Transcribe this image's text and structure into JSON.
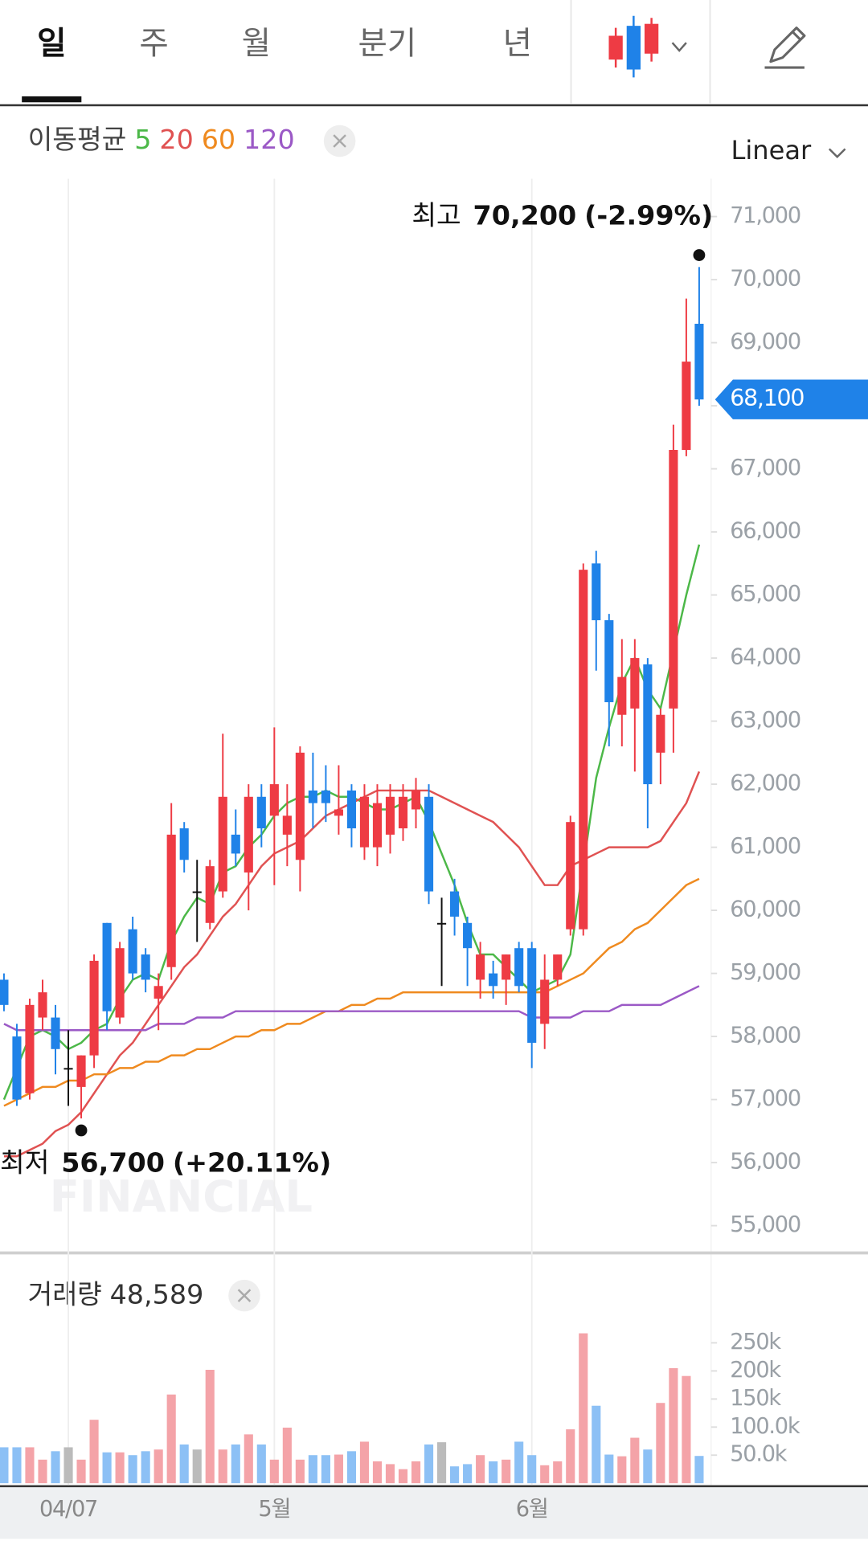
{
  "tabs": [
    "일",
    "주",
    "월",
    "분기",
    "년"
  ],
  "chart_data": {
    "type": "candlestick",
    "categories": [
      null,
      null,
      null,
      null,
      null,
      "04/07",
      null,
      null,
      null,
      null,
      null,
      null,
      null,
      null,
      null,
      null,
      null,
      null,
      null,
      null,
      null,
      "5월",
      null,
      null,
      null,
      null,
      null,
      null,
      null,
      null,
      null,
      null,
      null,
      null,
      null,
      null,
      null,
      null,
      null,
      null,
      null,
      "6월",
      null,
      null,
      null,
      null,
      null,
      null,
      null,
      null,
      null,
      null,
      null,
      null,
      null
    ],
    "open": [
      58900,
      58000,
      57100,
      58300,
      58300,
      57500,
      57200,
      57700,
      59800,
      58300,
      59700,
      59300,
      58600,
      59100,
      61300,
      60300,
      59800,
      60300,
      61200,
      60600,
      61800,
      61500,
      61200,
      60800,
      61900,
      61900,
      61500,
      61900,
      61000,
      61000,
      61200,
      61300,
      61600,
      61800,
      59800,
      60300,
      59800,
      58900,
      59000,
      58900,
      59400,
      59400,
      58200,
      58900,
      59700,
      59700,
      65500,
      64600,
      63100,
      63200,
      63900,
      62500,
      63200,
      67300,
      69300
    ],
    "high": [
      59000,
      58200,
      58600,
      58900,
      58500,
      58100,
      57700,
      59300,
      59800,
      59500,
      59900,
      59400,
      59000,
      61700,
      61400,
      60800,
      60800,
      62800,
      61600,
      62000,
      62000,
      62900,
      62000,
      62600,
      62500,
      62300,
      62300,
      62000,
      62000,
      62000,
      62000,
      62000,
      62100,
      62000,
      60200,
      60500,
      59900,
      59500,
      59200,
      59300,
      59500,
      59500,
      59300,
      59300,
      61500,
      65500,
      65700,
      64700,
      64300,
      64300,
      64000,
      63200,
      67700,
      69700,
      70200
    ],
    "low": [
      58400,
      56900,
      57000,
      58100,
      57400,
      56900,
      56700,
      57500,
      58100,
      58200,
      58900,
      58700,
      58100,
      58900,
      60600,
      59500,
      59700,
      60200,
      60700,
      60000,
      61000,
      60400,
      60700,
      60300,
      61300,
      61400,
      61200,
      61000,
      60800,
      60700,
      60900,
      61100,
      61300,
      60100,
      58800,
      59600,
      58800,
      58600,
      58600,
      58500,
      58700,
      57500,
      57800,
      58800,
      59600,
      59600,
      63800,
      62600,
      62600,
      62200,
      61300,
      62000,
      62500,
      67200,
      68000
    ],
    "close": [
      58500,
      57000,
      58500,
      58700,
      57800,
      57500,
      57700,
      59200,
      58400,
      59400,
      59000,
      58900,
      58800,
      61200,
      60800,
      60300,
      60700,
      61800,
      60900,
      61800,
      61300,
      62000,
      61500,
      62500,
      61700,
      61700,
      61600,
      61300,
      61800,
      61700,
      61800,
      61800,
      61900,
      60300,
      59800,
      59900,
      59400,
      59300,
      58800,
      59300,
      58800,
      57900,
      58900,
      59300,
      61400,
      65400,
      64600,
      63300,
      63700,
      64000,
      62000,
      63100,
      67300,
      68700,
      68100
    ],
    "up_color": "#ee3b44",
    "down_color": "#1f82e8",
    "flat_color": "#111111",
    "ylim": [
      54600,
      71600
    ],
    "yticks": [
      {
        "value": 55000,
        "label": "55,000"
      },
      {
        "value": 56000,
        "label": "56,000"
      },
      {
        "value": 57000,
        "label": "57,000"
      },
      {
        "value": 58000,
        "label": "58,000"
      },
      {
        "value": 59000,
        "label": "59,000"
      },
      {
        "value": 60000,
        "label": "60,000"
      },
      {
        "value": 61000,
        "label": "61,000"
      },
      {
        "value": 62000,
        "label": "62,000"
      },
      {
        "value": 63000,
        "label": "63,000"
      },
      {
        "value": 64000,
        "label": "64,000"
      },
      {
        "value": 65000,
        "label": "65,000"
      },
      {
        "value": 66000,
        "label": "66,000"
      },
      {
        "value": 67000,
        "label": "67,000"
      },
      {
        "value": 68000,
        "label": "68,000"
      },
      {
        "value": 69000,
        "label": "69,000"
      },
      {
        "value": 70000,
        "label": "70,000"
      },
      {
        "value": 71000,
        "label": "71,000"
      }
    ],
    "scale_label": "Linear",
    "last_price": {
      "value": 68100,
      "label": "68,100",
      "color": "#1f82e8"
    },
    "high_marker": {
      "label": "최고",
      "value": 70200,
      "value_label": "70,200",
      "change": "(-2.99%)"
    },
    "low_marker": {
      "label": "최저",
      "value": 56700,
      "value_label": "56,700",
      "change": "(+20.11%)"
    },
    "watermark": "FINANCIAL",
    "moving_average": {
      "label": "이동평균",
      "series": [
        {
          "name": "5",
          "color": "#4cb848",
          "values": [
            57000,
            57500,
            58000,
            58100,
            58000,
            57800,
            57900,
            58100,
            58200,
            58600,
            58900,
            59000,
            58900,
            59500,
            59900,
            60200,
            60100,
            60600,
            60700,
            61000,
            61200,
            61500,
            61700,
            61800,
            61800,
            61900,
            61800,
            61800,
            61700,
            61600,
            61600,
            61700,
            61800,
            61400,
            60900,
            60400,
            59800,
            59300,
            59300,
            59100,
            58900,
            58700,
            58800,
            58900,
            59300,
            60700,
            62100,
            62900,
            63600,
            64000,
            63500,
            63200,
            64100,
            65000,
            65800
          ]
        },
        {
          "name": "20",
          "color": "#e05252",
          "values": [
            56100,
            56100,
            56200,
            56300,
            56500,
            56600,
            56800,
            57100,
            57400,
            57700,
            57900,
            58200,
            58500,
            58800,
            59100,
            59300,
            59600,
            59900,
            60100,
            60400,
            60700,
            60900,
            61000,
            61100,
            61300,
            61500,
            61600,
            61700,
            61800,
            61900,
            61900,
            61900,
            61900,
            61900,
            61800,
            61700,
            61600,
            61500,
            61400,
            61200,
            61000,
            60700,
            60400,
            60400,
            60700,
            60800,
            60900,
            61000,
            61000,
            61000,
            61000,
            61100,
            61400,
            61700,
            62200
          ]
        },
        {
          "name": "60",
          "color": "#ef8a1f",
          "values": [
            56900,
            57000,
            57100,
            57200,
            57200,
            57300,
            57300,
            57400,
            57400,
            57500,
            57500,
            57600,
            57600,
            57700,
            57700,
            57800,
            57800,
            57900,
            58000,
            58000,
            58100,
            58100,
            58200,
            58200,
            58300,
            58400,
            58400,
            58500,
            58500,
            58600,
            58600,
            58700,
            58700,
            58700,
            58700,
            58700,
            58700,
            58700,
            58700,
            58700,
            58700,
            58700,
            58700,
            58800,
            58900,
            59000,
            59200,
            59400,
            59500,
            59700,
            59800,
            60000,
            60200,
            60400,
            60500
          ]
        },
        {
          "name": "120",
          "color": "#9b59c6",
          "values": [
            58200,
            58100,
            58100,
            58100,
            58100,
            58100,
            58100,
            58100,
            58100,
            58100,
            58100,
            58100,
            58200,
            58200,
            58200,
            58300,
            58300,
            58300,
            58400,
            58400,
            58400,
            58400,
            58400,
            58400,
            58400,
            58400,
            58400,
            58400,
            58400,
            58400,
            58400,
            58400,
            58400,
            58400,
            58400,
            58400,
            58400,
            58400,
            58400,
            58400,
            58400,
            58300,
            58300,
            58300,
            58300,
            58400,
            58400,
            58400,
            58500,
            58500,
            58500,
            58500,
            58600,
            58700,
            58800
          ]
        }
      ]
    },
    "volume": {
      "title": "거래량",
      "last_label": "48,589",
      "up_color": "#f4a3a8",
      "down_color": "#8cc0f5",
      "flat_color": "#bbbbbb",
      "values": [
        64000,
        64000,
        64000,
        42000,
        57000,
        64000,
        42000,
        113000,
        55000,
        55000,
        50000,
        57000,
        60000,
        158000,
        69000,
        60000,
        202000,
        60000,
        69000,
        87000,
        69000,
        42000,
        99000,
        42000,
        50000,
        50000,
        51000,
        57000,
        74000,
        39000,
        34000,
        25000,
        39000,
        69000,
        73000,
        30000,
        34000,
        50000,
        39000,
        42000,
        74000,
        50000,
        32000,
        39000,
        96000,
        267000,
        138000,
        51000,
        48000,
        81000,
        60000,
        143000,
        205000,
        191000,
        48589
      ],
      "ylim": [
        0,
        290000
      ],
      "yticks": [
        {
          "value": 50000,
          "label": "50.0k"
        },
        {
          "value": 100000,
          "label": "100.0k"
        },
        {
          "value": 150000,
          "label": "150k"
        },
        {
          "value": 200000,
          "label": "200k"
        },
        {
          "value": 250000,
          "label": "250k"
        }
      ]
    }
  }
}
